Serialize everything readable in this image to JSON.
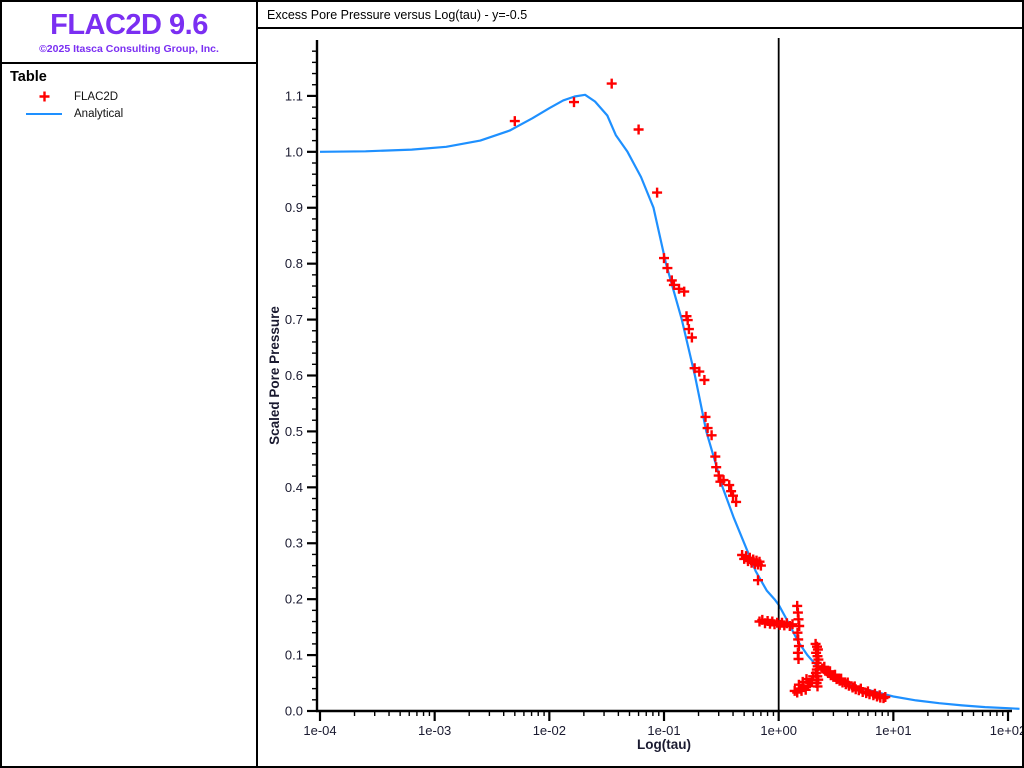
{
  "sidebar": {
    "logo_text": "FLAC2D 9.6",
    "logo_color": "#7B2FF2",
    "copyright": "©2025 Itasca Consulting Group, Inc.",
    "section_title": "Table",
    "legend": [
      {
        "label": "FLAC2D",
        "marker": "plus",
        "color": "#FF0000"
      },
      {
        "label": "Analytical",
        "marker": "line",
        "color": "#1E90FF"
      }
    ]
  },
  "chart": {
    "title": "Excess Pore Pressure versus Log(tau) - y=-0.5"
  },
  "chart_data": {
    "type": "line",
    "title": "Excess Pore Pressure versus Log(tau) - y=-0.5",
    "xlabel": "Log(tau)",
    "ylabel": "Scaled Pore Pressure",
    "x_scale": "log",
    "xlim": [
      0.0001,
      100
    ],
    "ylim": [
      0,
      1.2
    ],
    "grid": false,
    "legend_position": "left-sidebar",
    "x_ticks": [
      {
        "label": "1e-04",
        "value": 0.0001
      },
      {
        "label": "1e-03",
        "value": 0.001
      },
      {
        "label": "1e-02",
        "value": 0.01
      },
      {
        "label": "1e-01",
        "value": 0.1
      },
      {
        "label": "1e+00",
        "value": 1.0
      },
      {
        "label": "1e+01",
        "value": 10.0
      },
      {
        "label": "1e+02",
        "value": 100.0
      }
    ],
    "y_ticks": [
      {
        "label": "0.0",
        "value": 0.0
      },
      {
        "label": "0.1",
        "value": 0.1
      },
      {
        "label": "0.2",
        "value": 0.2
      },
      {
        "label": "0.3",
        "value": 0.3
      },
      {
        "label": "0.4",
        "value": 0.4
      },
      {
        "label": "0.5",
        "value": 0.5
      },
      {
        "label": "0.6",
        "value": 0.6
      },
      {
        "label": "0.7",
        "value": 0.7
      },
      {
        "label": "0.8",
        "value": 0.8
      },
      {
        "label": "0.9",
        "value": 0.9
      },
      {
        "label": "1.0",
        "value": 1.0
      },
      {
        "label": "1.1",
        "value": 1.1
      }
    ],
    "vline": {
      "x": 1.0,
      "color": "#000000"
    },
    "series": [
      {
        "name": "Analytical",
        "type": "line",
        "color": "#1E90FF",
        "points": [
          [
            0.0001,
            1.0
          ],
          [
            0.00025,
            1.001
          ],
          [
            0.00063,
            1.004
          ],
          [
            0.00126,
            1.009
          ],
          [
            0.0025,
            1.02
          ],
          [
            0.0045,
            1.038
          ],
          [
            0.0071,
            1.06
          ],
          [
            0.01,
            1.078
          ],
          [
            0.0132,
            1.092
          ],
          [
            0.0166,
            1.099
          ],
          [
            0.0205,
            1.102
          ],
          [
            0.025,
            1.09
          ],
          [
            0.032,
            1.065
          ],
          [
            0.038,
            1.03
          ],
          [
            0.048,
            1.0
          ],
          [
            0.063,
            0.955
          ],
          [
            0.081,
            0.9
          ],
          [
            0.104,
            0.8
          ],
          [
            0.143,
            0.7
          ],
          [
            0.186,
            0.6
          ],
          [
            0.234,
            0.5
          ],
          [
            0.324,
            0.4
          ],
          [
            0.407,
            0.345
          ],
          [
            0.5,
            0.3
          ],
          [
            0.63,
            0.25
          ],
          [
            0.79,
            0.215
          ],
          [
            0.92,
            0.2
          ],
          [
            1.0,
            0.19
          ],
          [
            1.2,
            0.16
          ],
          [
            1.48,
            0.124
          ],
          [
            1.78,
            0.1
          ],
          [
            2.19,
            0.079
          ],
          [
            2.82,
            0.063
          ],
          [
            3.55,
            0.053
          ],
          [
            5.0,
            0.042
          ],
          [
            7.1,
            0.034
          ],
          [
            10.0,
            0.026
          ],
          [
            15.8,
            0.019
          ],
          [
            25.1,
            0.014
          ],
          [
            39.8,
            0.01
          ],
          [
            63.1,
            0.007
          ],
          [
            100.0,
            0.005
          ],
          [
            126.0,
            0.004
          ]
        ]
      },
      {
        "name": "FLAC2D",
        "type": "scatter",
        "marker": "plus",
        "color": "#FF0000",
        "points": [
          [
            0.005,
            1.055
          ],
          [
            0.0164,
            1.089
          ],
          [
            0.035,
            1.122
          ],
          [
            0.06,
            1.04
          ],
          [
            0.087,
            0.927
          ],
          [
            0.1,
            0.81
          ],
          [
            0.107,
            0.792
          ],
          [
            0.117,
            0.77
          ],
          [
            0.122,
            0.762
          ],
          [
            0.135,
            0.755
          ],
          [
            0.15,
            0.75
          ],
          [
            0.157,
            0.706
          ],
          [
            0.161,
            0.699
          ],
          [
            0.165,
            0.683
          ],
          [
            0.175,
            0.668
          ],
          [
            0.185,
            0.613
          ],
          [
            0.203,
            0.607
          ],
          [
            0.225,
            0.592
          ],
          [
            0.23,
            0.526
          ],
          [
            0.24,
            0.506
          ],
          [
            0.26,
            0.493
          ],
          [
            0.28,
            0.455
          ],
          [
            0.285,
            0.436
          ],
          [
            0.3,
            0.421
          ],
          [
            0.31,
            0.41
          ],
          [
            0.33,
            0.413
          ],
          [
            0.37,
            0.404
          ],
          [
            0.385,
            0.393
          ],
          [
            0.4,
            0.385
          ],
          [
            0.425,
            0.374
          ],
          [
            0.48,
            0.279
          ],
          [
            0.5,
            0.272
          ],
          [
            0.52,
            0.277
          ],
          [
            0.54,
            0.268
          ],
          [
            0.56,
            0.274
          ],
          [
            0.58,
            0.265
          ],
          [
            0.6,
            0.271
          ],
          [
            0.62,
            0.263
          ],
          [
            0.64,
            0.269
          ],
          [
            0.66,
            0.262
          ],
          [
            0.68,
            0.267
          ],
          [
            0.7,
            0.26
          ],
          [
            0.66,
            0.234
          ],
          [
            0.68,
            0.16
          ],
          [
            0.72,
            0.163
          ],
          [
            0.76,
            0.157
          ],
          [
            0.8,
            0.161
          ],
          [
            0.84,
            0.156
          ],
          [
            0.88,
            0.16
          ],
          [
            0.92,
            0.155
          ],
          [
            0.97,
            0.158
          ],
          [
            1.02,
            0.154
          ],
          [
            1.07,
            0.158
          ],
          [
            1.12,
            0.153
          ],
          [
            1.18,
            0.157
          ],
          [
            1.25,
            0.152
          ],
          [
            1.32,
            0.155
          ],
          [
            1.45,
            0.188
          ],
          [
            1.47,
            0.176
          ],
          [
            1.49,
            0.164
          ],
          [
            1.51,
            0.152
          ],
          [
            1.46,
            0.14
          ],
          [
            1.48,
            0.128
          ],
          [
            1.5,
            0.116
          ],
          [
            1.47,
            0.104
          ],
          [
            1.49,
            0.093
          ],
          [
            1.38,
            0.036
          ],
          [
            1.45,
            0.033
          ],
          [
            1.52,
            0.04
          ],
          [
            1.58,
            0.036
          ],
          [
            1.65,
            0.043
          ],
          [
            1.72,
            0.038
          ],
          [
            1.8,
            0.045
          ],
          [
            1.88,
            0.05
          ],
          [
            1.95,
            0.055
          ],
          [
            1.5,
            0.047
          ],
          [
            1.62,
            0.052
          ],
          [
            1.75,
            0.057
          ],
          [
            2.0,
            0.062
          ],
          [
            2.1,
            0.12
          ],
          [
            2.16,
            0.115
          ],
          [
            2.2,
            0.11
          ],
          [
            2.12,
            0.104
          ],
          [
            2.18,
            0.098
          ],
          [
            2.22,
            0.092
          ],
          [
            2.14,
            0.086
          ],
          [
            2.19,
            0.08
          ],
          [
            2.15,
            0.074
          ],
          [
            2.11,
            0.068
          ],
          [
            2.17,
            0.062
          ],
          [
            2.21,
            0.056
          ],
          [
            2.14,
            0.05
          ],
          [
            2.18,
            0.044
          ],
          [
            2.4,
            0.076
          ],
          [
            2.5,
            0.079
          ],
          [
            2.55,
            0.072
          ],
          [
            2.7,
            0.068
          ],
          [
            2.8,
            0.071
          ],
          [
            2.85,
            0.064
          ],
          [
            3.0,
            0.061
          ],
          [
            3.1,
            0.065
          ],
          [
            3.2,
            0.057
          ],
          [
            3.4,
            0.054
          ],
          [
            3.5,
            0.058
          ],
          [
            3.6,
            0.051
          ],
          [
            3.85,
            0.048
          ],
          [
            4.0,
            0.051
          ],
          [
            4.1,
            0.045
          ],
          [
            4.4,
            0.042
          ],
          [
            4.6,
            0.044
          ],
          [
            4.7,
            0.039
          ],
          [
            5.0,
            0.037
          ],
          [
            5.2,
            0.04
          ],
          [
            5.4,
            0.034
          ],
          [
            5.8,
            0.032
          ],
          [
            6.0,
            0.035
          ],
          [
            6.2,
            0.03
          ],
          [
            6.7,
            0.028
          ],
          [
            6.9,
            0.031
          ],
          [
            7.2,
            0.026
          ],
          [
            7.6,
            0.028
          ],
          [
            7.7,
            0.024
          ],
          [
            8.2,
            0.023
          ],
          [
            8.5,
            0.025
          ]
        ]
      }
    ]
  }
}
